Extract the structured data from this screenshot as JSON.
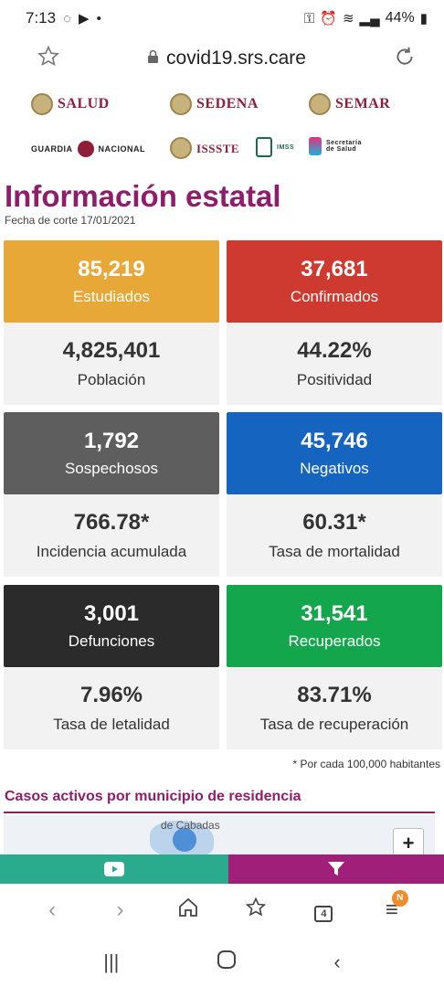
{
  "status": {
    "time": "7:13",
    "battery": "44%"
  },
  "browser": {
    "url": "covid19.srs.care"
  },
  "logos": {
    "salud": "SALUD",
    "sedena": "SEDENA",
    "semar": "SEMAR",
    "guardia": "GUARDIA",
    "nacional": "NACIONAL",
    "issste": "ISSSTE",
    "imss": "IMSS",
    "secretaria": "Secretaría de Salud"
  },
  "page": {
    "title": "Información estatal",
    "cutoff": "Fecha de corte 17/01/2021",
    "footnote": "* Por cada 100,000 habitantes",
    "section_title": "Casos activos por municipio de residencia",
    "map_place": "de Cabadas"
  },
  "stats": [
    {
      "value": "85,219",
      "label": "Estudiados",
      "color": "#e8a838",
      "sub_value": "4,825,401",
      "sub_label": "Población"
    },
    {
      "value": "37,681",
      "label": "Confirmados",
      "color": "#cf3a30",
      "sub_value": "44.22%",
      "sub_label": "Positividad"
    },
    {
      "value": "1,792",
      "label": "Sospechosos",
      "color": "#5e5e5e",
      "sub_value": "766.78*",
      "sub_label": "Incidencia acumulada"
    },
    {
      "value": "45,746",
      "label": "Negativos",
      "color": "#1565c0",
      "sub_value": "60.31*",
      "sub_label": "Tasa de mortalidad"
    },
    {
      "value": "3,001",
      "label": "Defunciones",
      "color": "#2b2b2b",
      "sub_value": "7.96%",
      "sub_label": "Tasa de letalidad"
    },
    {
      "value": "31,541",
      "label": "Recuperados",
      "color": "#14a64c",
      "sub_value": "83.71%",
      "sub_label": "Tasa de recuperación"
    }
  ],
  "browser_nav": {
    "tab_count": "4",
    "badge": "N"
  },
  "colors": {
    "accent": "#8e1e6a",
    "youtube_bar": "#2aab8e",
    "filter_bar": "#a01f78"
  }
}
